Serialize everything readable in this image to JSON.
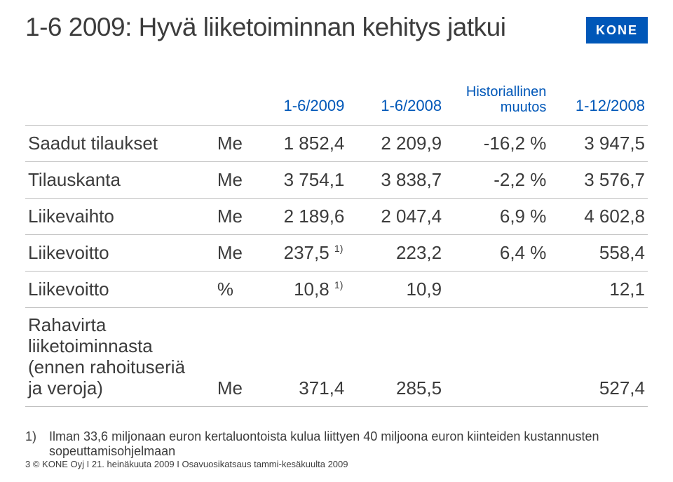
{
  "title": "1-6 2009: Hyvä liiketoiminnan kehitys jatkui",
  "logo_text": "KONE",
  "logo_bg": "#0057b8",
  "logo_fg": "#ffffff",
  "header_color": "#0057b8",
  "text_color": "#3c3c3c",
  "border_color": "#bfbfbf",
  "columns": {
    "c1": "1-6/2009",
    "c2": "1-6/2008",
    "c3_line1": "Historiallinen",
    "c3_line2": "muutos",
    "c4": "1-12/2008"
  },
  "rows": [
    {
      "label": "Saadut tilaukset",
      "unit": "Me",
      "v1": "1 852,4",
      "v2": "2 209,9",
      "v3": "-16,2 %",
      "v4": "3 947,5",
      "sup1": "",
      "sup2": ""
    },
    {
      "label": "Tilauskanta",
      "unit": "Me",
      "v1": "3 754,1",
      "v2": "3 838,7",
      "v3": "-2,2 %",
      "v4": "3 576,7",
      "sup1": "",
      "sup2": ""
    },
    {
      "label": "Liikevaihto",
      "unit": "Me",
      "v1": "2 189,6",
      "v2": "2 047,4",
      "v3": "6,9 %",
      "v4": "4 602,8",
      "sup1": "",
      "sup2": ""
    },
    {
      "label": "Liikevoitto",
      "unit": "Me",
      "v1": "237,5",
      "v2": "223,2",
      "v3": "6,4 %",
      "v4": "558,4",
      "sup1": "1)",
      "sup2": ""
    },
    {
      "label": "Liikevoitto",
      "unit": "%",
      "v1": "10,8",
      "v2": "10,9",
      "v3": "",
      "v4": "12,1",
      "sup1": "1)",
      "sup2": ""
    },
    {
      "label": "Rahavirta\nliiketoiminnasta\n(ennen rahoituseriä\nja veroja)",
      "unit": "Me",
      "v1": "371,4",
      "v2": "285,5",
      "v3": "",
      "v4": "527,4",
      "sup1": "",
      "sup2": ""
    }
  ],
  "footnote": {
    "num": "1)",
    "text": "Ilman 33,6 miljonaan euron kertaluontoista kulua liittyen 40 miljoona euron kiinteiden kustannusten sopeuttamisohjelmaan"
  },
  "footer": {
    "page": "3",
    "text": "© KONE Oyj I  21. heinäkuuta  2009 I Osavuosikatsaus tammi-kesäkuulta 2009"
  }
}
